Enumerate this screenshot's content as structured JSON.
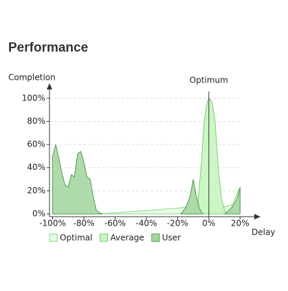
{
  "chart_data": {
    "type": "area",
    "title": "Performance",
    "ylabel": "Completion",
    "xlabel": "Delay",
    "xlim": [
      -102,
      30
    ],
    "ylim": [
      0,
      110
    ],
    "xticks": [
      {
        "value": -100,
        "label": "-100%"
      },
      {
        "value": -80,
        "label": "-80%"
      },
      {
        "value": -60,
        "label": "-60%"
      },
      {
        "value": -40,
        "label": "-40%"
      },
      {
        "value": -20,
        "label": "-20%"
      },
      {
        "value": 0,
        "label": "0%"
      },
      {
        "value": 20,
        "label": "20%"
      }
    ],
    "yticks": [
      {
        "value": 0,
        "label": "0%"
      },
      {
        "value": 20,
        "label": "20%"
      },
      {
        "value": 40,
        "label": "40%"
      },
      {
        "value": 60,
        "label": "60%"
      },
      {
        "value": 80,
        "label": "80%"
      },
      {
        "value": 100,
        "label": "100%"
      }
    ],
    "grid": true,
    "legend": "bottom",
    "annotations": [
      {
        "text": "Optimum",
        "x": 0
      }
    ],
    "series": [
      {
        "name": "Optimal",
        "color": "#e2fbe0",
        "stroke": "#8fd68a",
        "x": [
          -72,
          -60,
          -50,
          -40,
          -30,
          -20,
          -15,
          -10,
          -5,
          0,
          5,
          10,
          15,
          20
        ],
        "values": [
          0,
          1,
          2,
          3,
          4,
          5,
          6,
          8,
          10,
          12,
          10,
          6,
          8,
          23
        ]
      },
      {
        "name": "Average",
        "color": "#c6f5c0",
        "stroke": "#7ccc75",
        "x": [
          -10,
          -7,
          -5,
          -3,
          -1,
          0,
          2,
          4,
          6,
          8,
          10,
          12
        ],
        "values": [
          0,
          10,
          40,
          80,
          97,
          100,
          97,
          80,
          40,
          15,
          3,
          0
        ]
      },
      {
        "name": "User",
        "color": "#a6d7a3",
        "stroke": "#4e9a4a",
        "x": [
          -100,
          -98,
          -96,
          -94,
          -92,
          -90,
          -88,
          -86,
          -84,
          -82,
          -80,
          -78,
          -76,
          -74,
          -72,
          -70,
          -68,
          null,
          -18,
          -15,
          -12,
          -10,
          -8,
          -6,
          -4,
          null,
          10,
          12,
          15,
          18,
          20
        ],
        "values": [
          50,
          60,
          48,
          35,
          25,
          23,
          34,
          32,
          52,
          54,
          45,
          32,
          30,
          15,
          3,
          1,
          0,
          null,
          0,
          5,
          15,
          30,
          15,
          5,
          0,
          null,
          0,
          2,
          6,
          13,
          23
        ]
      }
    ]
  }
}
